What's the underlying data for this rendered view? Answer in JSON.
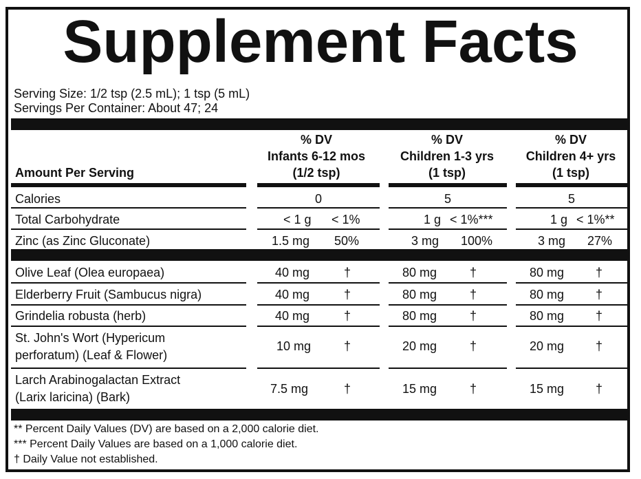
{
  "title": "Supplement Facts",
  "serving_size": "Serving Size: 1/2 tsp (2.5 mL); 1 tsp (5 mL)",
  "servings_per_container": "Servings Per Container: About 47; 24",
  "header": {
    "amount_label": "Amount Per Serving",
    "columns": [
      {
        "dv": "% DV",
        "group": "Infants 6-12 mos",
        "serving": "(1/2 tsp)"
      },
      {
        "dv": "% DV",
        "group": "Children 1-3 yrs",
        "serving": "(1 tsp)"
      },
      {
        "dv": "% DV",
        "group": "Children 4+ yrs",
        "serving": "(1 tsp)"
      }
    ]
  },
  "nutrients": [
    {
      "name": "Calories",
      "values": [
        "0",
        "5",
        "5"
      ]
    },
    {
      "name": "Total Carbohydrate",
      "values": [
        [
          "< 1 g",
          "< 1%"
        ],
        [
          "1 g",
          "< 1%***"
        ],
        [
          "1 g",
          "< 1%**"
        ]
      ]
    },
    {
      "name": "Zinc (as Zinc Gluconate)",
      "values": [
        [
          "1.5 mg",
          "50%"
        ],
        [
          "3 mg",
          "100%"
        ],
        [
          "3 mg",
          "27%"
        ]
      ]
    }
  ],
  "herbs": [
    {
      "name": "Olive Leaf (Olea europaea)",
      "values": [
        [
          "40 mg",
          "†"
        ],
        [
          "80 mg",
          "†"
        ],
        [
          "80 mg",
          "†"
        ]
      ]
    },
    {
      "name": "Elderberry Fruit (Sambucus nigra)",
      "values": [
        [
          "40 mg",
          "†"
        ],
        [
          "80 mg",
          "†"
        ],
        [
          "80 mg",
          "†"
        ]
      ]
    },
    {
      "name": "Grindelia robusta (herb)",
      "values": [
        [
          "40 mg",
          "†"
        ],
        [
          "80 mg",
          "†"
        ],
        [
          "80 mg",
          "†"
        ]
      ]
    },
    {
      "name_lines": [
        "St. John's Wort (Hypericum",
        "perforatum) (Leaf & Flower)"
      ],
      "values": [
        [
          "10 mg",
          "†"
        ],
        [
          "20 mg",
          "†"
        ],
        [
          "20 mg",
          "†"
        ]
      ]
    },
    {
      "name_lines": [
        "Larch Arabinogalactan Extract",
        "(Larix laricina) (Bark)"
      ],
      "values": [
        [
          "7.5 mg",
          "†"
        ],
        [
          "15 mg",
          "†"
        ],
        [
          "15 mg",
          "†"
        ]
      ]
    }
  ],
  "footnotes": [
    "** Percent Daily Values (DV) are based on a 2,000 calorie diet.",
    "*** Percent Daily Values are based on a 1,000 calorie diet.",
    "† Daily Value not established."
  ]
}
